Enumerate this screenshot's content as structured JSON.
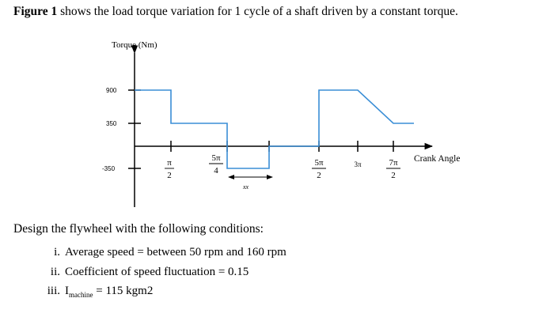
{
  "intro": {
    "figure_label": "Figure 1",
    "text": " shows the load torque variation for 1 cycle of a shaft driven by a constant torque."
  },
  "figure": {
    "y_axis_label": "Torque (Nm)",
    "x_axis_label": "Crank Angle",
    "y_ticks": [
      "900",
      "350",
      "-350"
    ],
    "x_ticks": [
      {
        "num": "π",
        "den": "2"
      },
      {
        "num": "5π",
        "den": "4"
      },
      {
        "num": "5π",
        "den": "2"
      },
      {
        "num": "3π",
        "den": ""
      },
      {
        "num": "7π",
        "den": "2"
      }
    ],
    "span_label": "xx",
    "line_color": "#3a8ed6"
  },
  "chart_data": {
    "type": "line",
    "xlabel": "Crank Angle",
    "ylabel": "Torque (Nm)",
    "x_tick_labels": [
      "π/2",
      "5π/4",
      "5π/2",
      "3π",
      "7π/2"
    ],
    "y_tick_labels": [
      "900",
      "350",
      "-350"
    ],
    "series": [
      {
        "x": [
          "0",
          "π/2",
          "π/2",
          "5π/4",
          "5π/4",
          "2π",
          "2π",
          "5π/2",
          "5π/2",
          "3π",
          "7π/2",
          "4π"
        ],
        "y": [
          900,
          900,
          350,
          350,
          -350,
          -350,
          0,
          0,
          900,
          900,
          350,
          350
        ]
      }
    ],
    "annotations": [
      "xx"
    ]
  },
  "design": {
    "heading": "Design the flywheel with the following conditions:",
    "conditions": [
      {
        "num": "i.",
        "text": "Average speed = between 50 rpm and 160 rpm"
      },
      {
        "num": "ii.",
        "text": "Coefficient of speed fluctuation = 0.15"
      },
      {
        "num": "iii.",
        "pre": "I",
        "sub": "machine",
        "text": " = 115 kgm2"
      }
    ]
  }
}
